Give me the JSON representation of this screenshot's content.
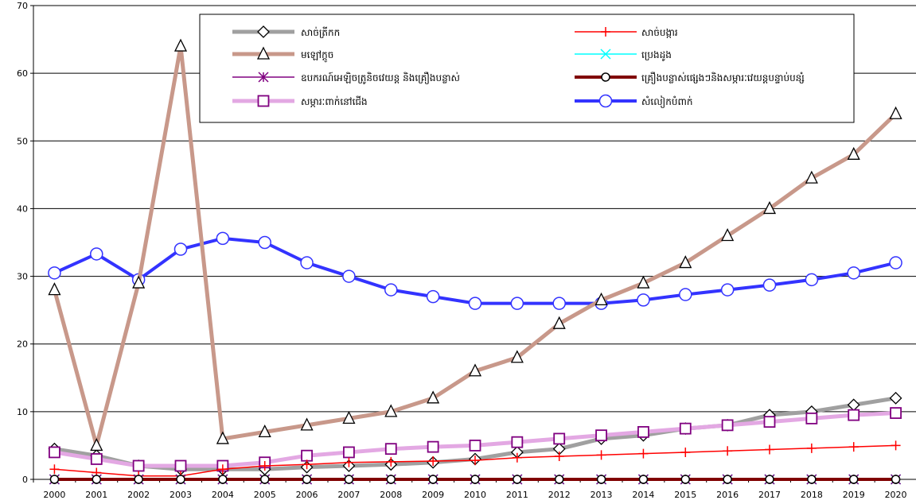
{
  "chart_data": {
    "type": "line",
    "x": [
      "2000",
      "2001",
      "2002",
      "2003",
      "2004",
      "2005",
      "2006",
      "2007",
      "2008",
      "2009",
      "2010",
      "2011",
      "2012",
      "2013",
      "2014",
      "2015",
      "2016",
      "2017",
      "2018",
      "2019",
      "2020"
    ],
    "ylim": [
      0,
      70
    ],
    "yticks": [
      0,
      10,
      20,
      30,
      40,
      50,
      60,
      70
    ],
    "grid": true,
    "legend_position": "top-center",
    "series": [
      {
        "name": "សាច់ត្រីកក",
        "color": "#a0a0a0",
        "width": 5,
        "marker": "diamond",
        "values": [
          4.5,
          3.5,
          2,
          1.5,
          1.5,
          1.5,
          1.8,
          2,
          2.2,
          2.5,
          3,
          4,
          4.5,
          6,
          6.5,
          7.5,
          8,
          9.5,
          10,
          11,
          12
        ]
      },
      {
        "name": "សាច់បង្ការ",
        "color": "#ff0000",
        "width": 1.5,
        "marker": "plus",
        "values": [
          1.5,
          1,
          0.5,
          0.5,
          1.5,
          2,
          2.2,
          2.5,
          2.6,
          2.7,
          2.8,
          3.2,
          3.4,
          3.6,
          3.8,
          4,
          4.2,
          4.4,
          4.6,
          4.8,
          5
        ]
      },
      {
        "name": "មឡៅក្តូច",
        "color": "#c8988a",
        "width": 5,
        "marker": "triangle",
        "values": [
          28,
          5,
          29,
          64,
          6,
          7,
          8,
          9,
          10,
          12,
          16,
          18,
          23,
          26.5,
          29,
          32,
          36,
          40,
          44.5,
          48,
          54
        ]
      },
      {
        "name": "ប្រេងដូង",
        "color": "#00ffff",
        "width": 1.5,
        "marker": "x",
        "values": [
          0,
          0,
          0,
          0,
          0,
          0,
          0,
          0,
          0,
          0,
          0,
          0,
          0,
          0,
          0,
          0,
          0,
          0,
          0,
          0,
          0
        ]
      },
      {
        "name": "ឧបករណ៍អេឡិចត្រូនិចវេយន្ត និងគ្រឿងបន្លាស់",
        "color": "#800080",
        "width": 1.5,
        "marker": "asterisk",
        "values": [
          0,
          0,
          0,
          0,
          0,
          0,
          0,
          0,
          0,
          0,
          0,
          0,
          0,
          0,
          0,
          0,
          0,
          0,
          0,
          0,
          0
        ]
      },
      {
        "name": "គ្រឿងបន្លាស់ផ្សេងៗនិងសម្ភារៈវេយន្តបន្ទាប់បន្សំ",
        "color": "#800000",
        "width": 4,
        "marker": "circle",
        "values": [
          0,
          0,
          0,
          0,
          0,
          0,
          0,
          0,
          0,
          0,
          0,
          0,
          0,
          0,
          0,
          0,
          0,
          0,
          0,
          0,
          0
        ]
      },
      {
        "name": "សម្ភារៈពាក់នៅជើង",
        "color": "#e3a8e3",
        "width": 5,
        "marker": "square",
        "values": [
          4,
          3,
          2,
          2,
          2,
          2.5,
          3.5,
          4,
          4.5,
          4.8,
          5,
          5.5,
          6,
          6.5,
          7,
          7.5,
          8,
          8.5,
          9,
          9.5,
          9.8
        ]
      },
      {
        "name": "សំលៀកបំពាក់",
        "color": "#3333ff",
        "width": 4,
        "marker": "circle",
        "values": [
          30.5,
          33.3,
          29.5,
          34,
          35.6,
          35,
          32,
          30,
          28,
          27,
          26,
          26,
          26,
          26,
          26.5,
          27.3,
          28,
          28.7,
          29.5,
          30.5,
          32
        ]
      }
    ]
  }
}
